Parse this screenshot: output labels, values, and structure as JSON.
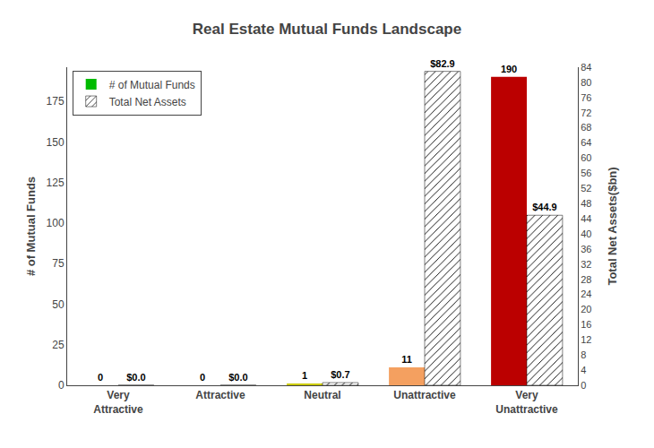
{
  "chart_data": {
    "type": "bar",
    "title": "Real Estate Mutual Funds Landscape",
    "categories": [
      "Very\nAttractive",
      "Attractive",
      "Neutral",
      "Unattractive",
      "Very\nUnattractive"
    ],
    "series": [
      {
        "name": "# of Mutual Funds",
        "colors": [
          "#00bb00",
          "#00bb00",
          "#cccc00",
          "#f4a060",
          "#bb0000"
        ],
        "values": [
          0,
          0,
          1,
          11,
          190
        ]
      },
      {
        "name": "Total Net Assets",
        "color": "#6699ff",
        "axis": "y2",
        "values": [
          0.0,
          0.0,
          0.7,
          82.9,
          44.9
        ],
        "value_labels": [
          "$0.0",
          "$0.0",
          "$0.7",
          "$82.9",
          "$44.9"
        ]
      }
    ],
    "ylabel": "# of Mutual Funds",
    "y2label": "Total Net Assets($bn)",
    "ylim": [
      0,
      196
    ],
    "yticks": [
      0,
      25,
      50,
      75,
      100,
      125,
      150,
      175
    ],
    "y2lim": [
      0,
      84
    ],
    "y2ticks": [
      0,
      4,
      8,
      12,
      16,
      20,
      24,
      28,
      32,
      36,
      40,
      44,
      48,
      52,
      56,
      60,
      64,
      68,
      72,
      76,
      80,
      84
    ],
    "data_labels": true,
    "legend": "upper left",
    "grid": false
  }
}
